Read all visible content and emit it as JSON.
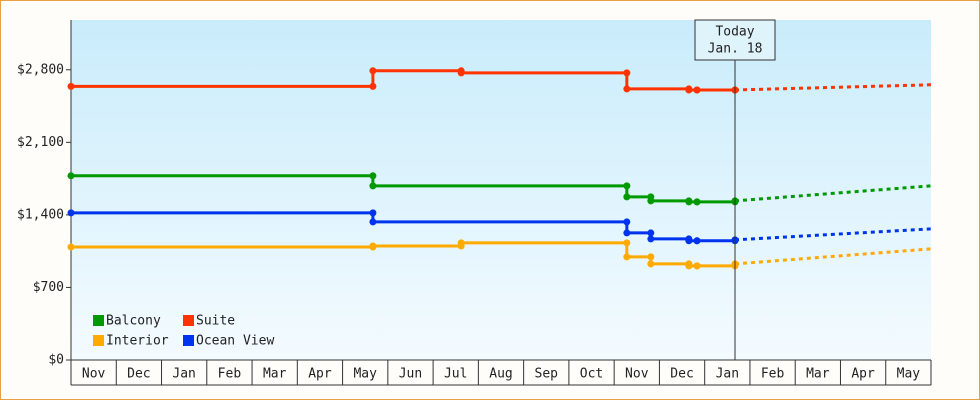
{
  "chart_data": {
    "type": "step-line",
    "xlim": [
      0,
      19
    ],
    "xticks": [
      {
        "value": 0.5,
        "label": "Nov"
      },
      {
        "value": 1.5,
        "label": "Dec"
      },
      {
        "value": 2.5,
        "label": "Jan"
      },
      {
        "value": 3.5,
        "label": "Feb"
      },
      {
        "value": 4.5,
        "label": "Mar"
      },
      {
        "value": 5.5,
        "label": "Apr"
      },
      {
        "value": 6.5,
        "label": "May"
      },
      {
        "value": 7.5,
        "label": "Jun"
      },
      {
        "value": 8.5,
        "label": "Jul"
      },
      {
        "value": 9.5,
        "label": "Aug"
      },
      {
        "value": 10.5,
        "label": "Sep"
      },
      {
        "value": 11.5,
        "label": "Oct"
      },
      {
        "value": 12.5,
        "label": "Nov"
      },
      {
        "value": 13.5,
        "label": "Dec"
      },
      {
        "value": 14.5,
        "label": "Jan"
      },
      {
        "value": 15.5,
        "label": "Feb"
      },
      {
        "value": 16.5,
        "label": "Mar"
      },
      {
        "value": 17.5,
        "label": "Apr"
      },
      {
        "value": 18.5,
        "label": "May"
      }
    ],
    "ylim": [
      0,
      3280
    ],
    "yticks": [
      {
        "value": 0,
        "label": "$0"
      },
      {
        "value": 700,
        "label": "$700"
      },
      {
        "value": 1400,
        "label": "$1,400"
      },
      {
        "value": 2100,
        "label": "$2,100"
      },
      {
        "value": 2800,
        "label": "$2,800"
      }
    ],
    "today": {
      "x": 14.67,
      "label": "Today",
      "date": "Jan. 18"
    },
    "series": [
      {
        "name": "Balcony",
        "color": "#009900",
        "x": [
          0,
          6.67,
          12.28,
          12.81,
          13.65,
          13.83,
          14.67
        ],
        "values": [
          1777,
          1680,
          1574,
          1535,
          1525,
          1525,
          1535
        ],
        "forecast_x": [
          19
        ],
        "forecast_values": [
          1680
        ]
      },
      {
        "name": "Suite",
        "color": "#ff3300",
        "x": [
          0,
          6.67,
          8.62,
          12.28,
          13.65,
          13.83,
          14.67
        ],
        "values": [
          2640,
          2790,
          2770,
          2615,
          2605,
          2605,
          2605
        ],
        "forecast_x": [
          19
        ],
        "forecast_values": [
          2655
        ]
      },
      {
        "name": "Interior",
        "color": "#ffaa00",
        "x": [
          0,
          6.67,
          8.62,
          12.28,
          12.81,
          13.65,
          13.83,
          14.67
        ],
        "values": [
          1090,
          1100,
          1130,
          995,
          927,
          908,
          908,
          927
        ],
        "forecast_x": [
          19
        ],
        "forecast_values": [
          1072
        ]
      },
      {
        "name": "Ocean View",
        "color": "#0033ee",
        "x": [
          0,
          6.67,
          12.28,
          12.81,
          13.65,
          13.83,
          14.67
        ],
        "values": [
          1419,
          1332,
          1226,
          1168,
          1150,
          1150,
          1159
        ],
        "forecast_x": [
          19
        ],
        "forecast_values": [
          1265
        ]
      }
    ]
  }
}
